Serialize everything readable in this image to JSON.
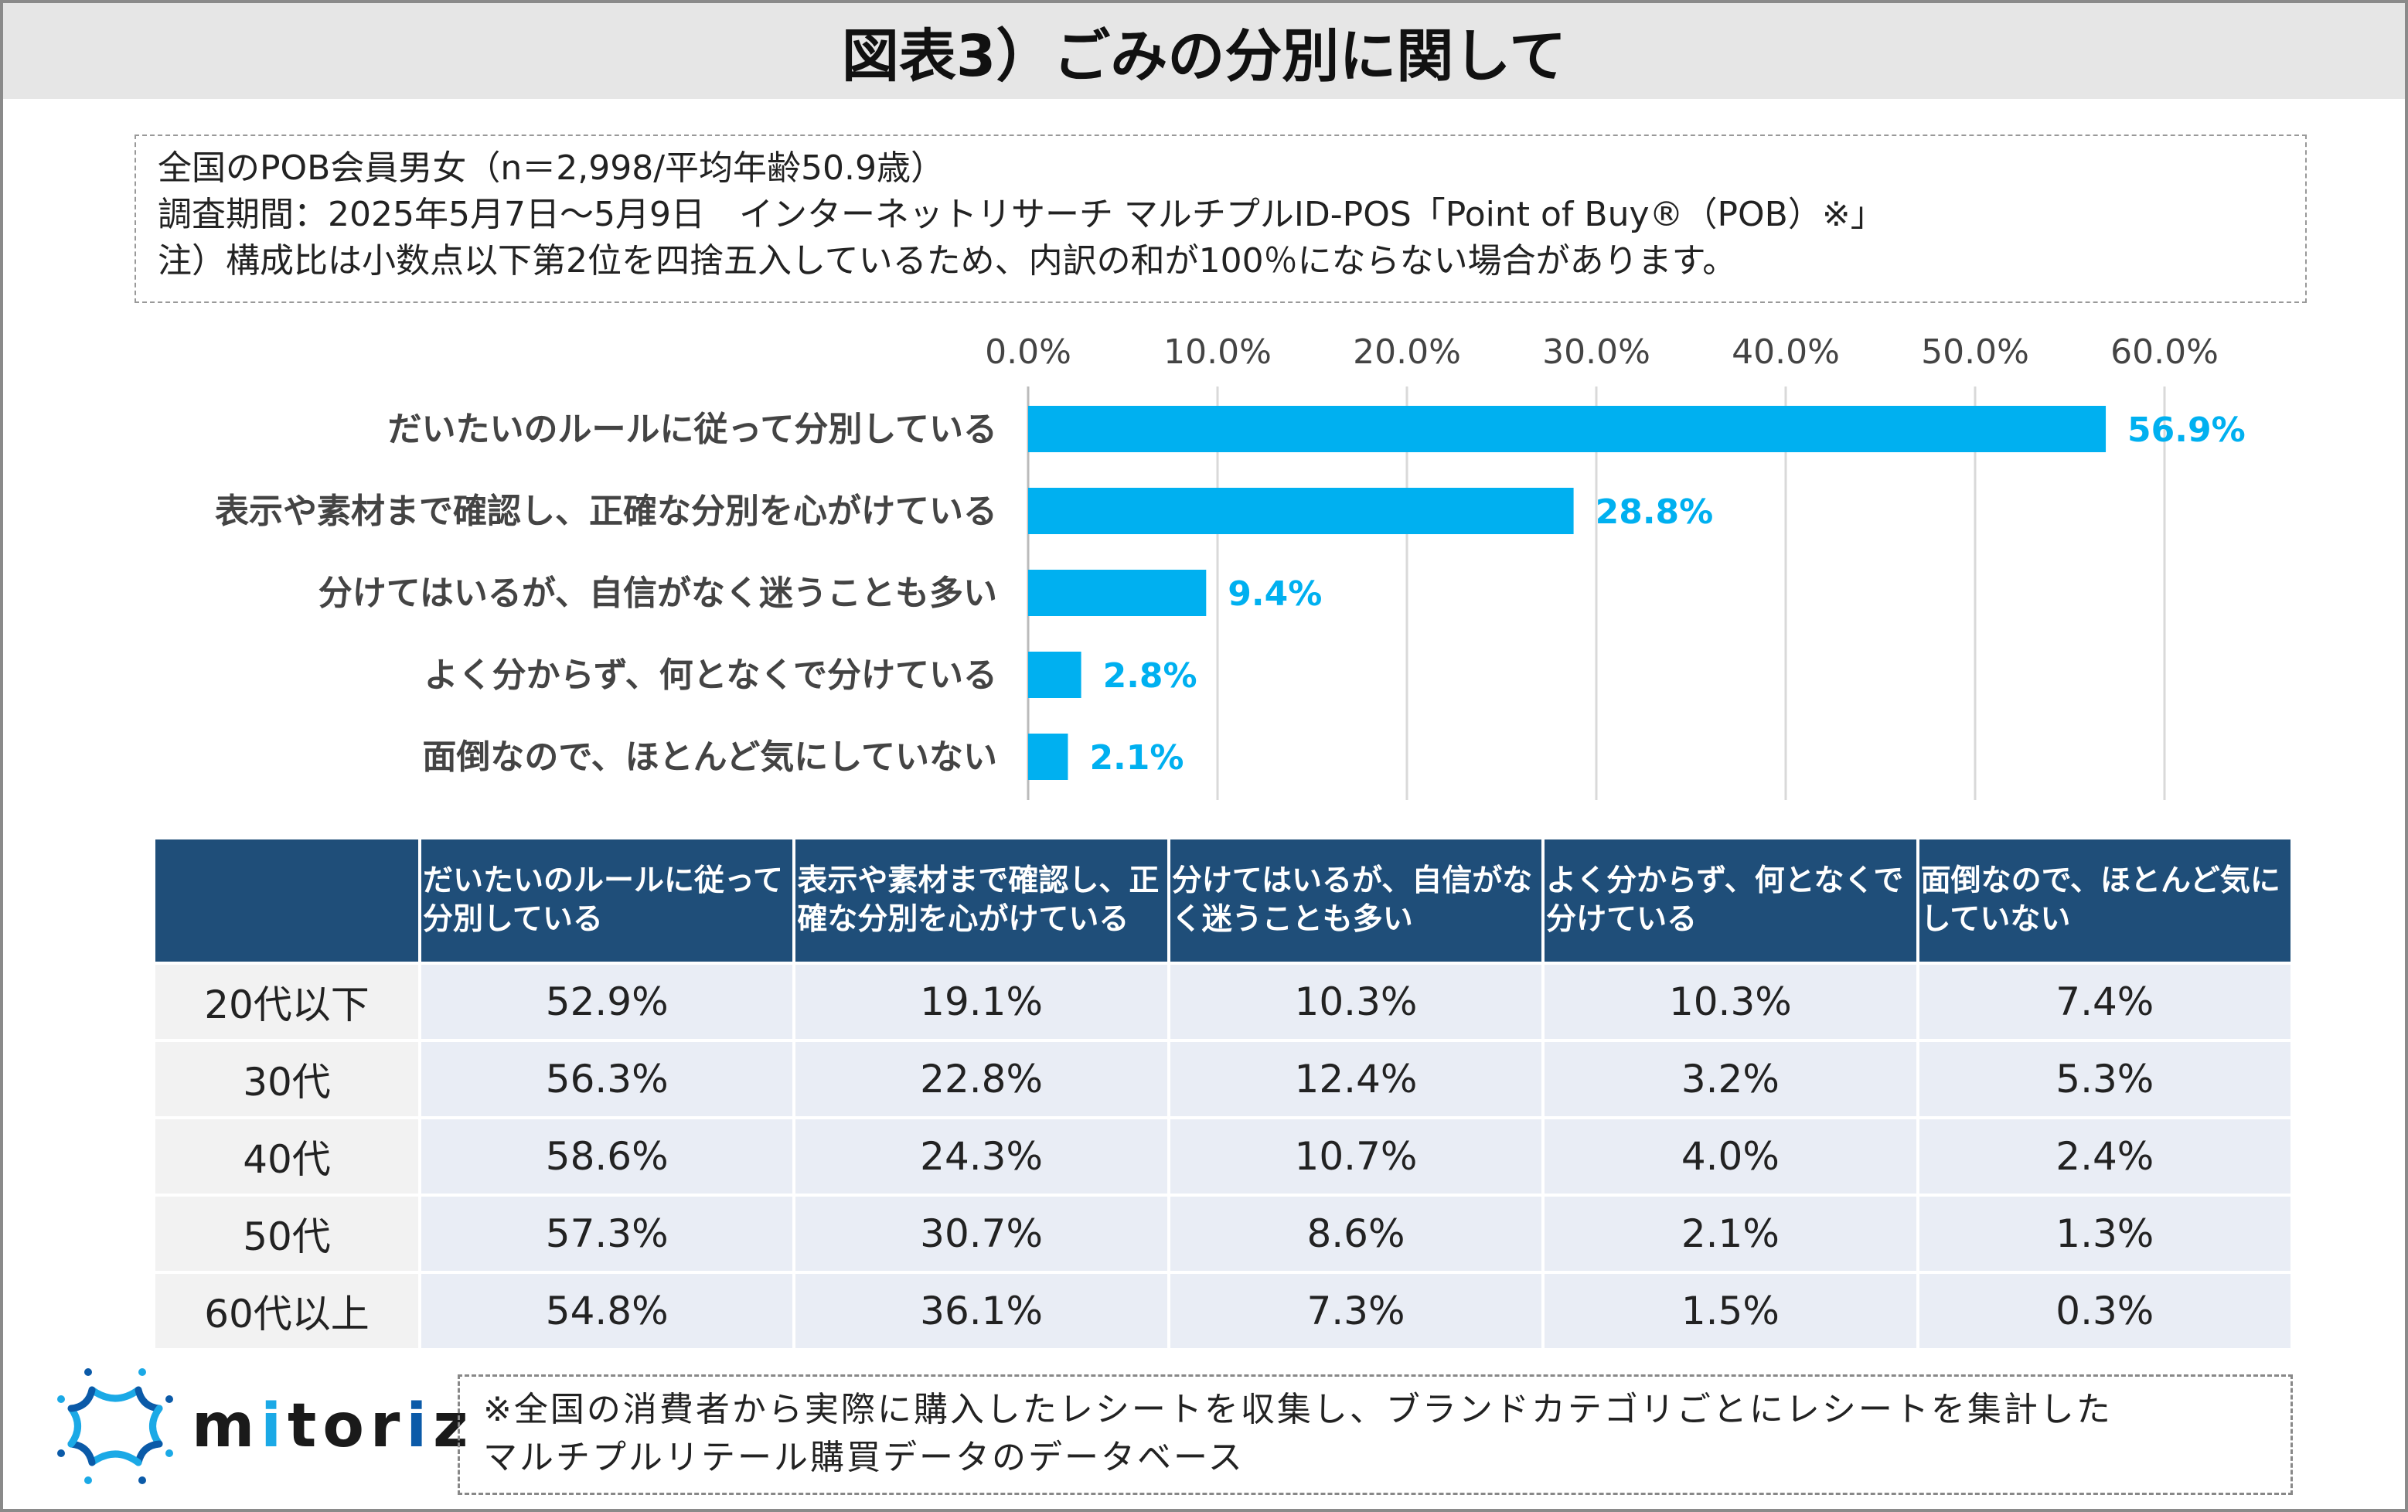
{
  "title": "図表3）ごみの分別に関して",
  "info": {
    "line1": "全国のPOB会員男女（n＝2,998/平均年齢50.9歳）",
    "line2": "調査期間：2025年5月7日～5月9日　インターネットリサーチ マルチプルID-POS「Point of Buy®（POB）※」",
    "line3": "注）構成比は小数点以下第2位を四捨五入しているため、内訳の和が100％にならない場合があります。"
  },
  "colors": {
    "bar": "#00b0f0",
    "label": "#00b0f0",
    "table_header": "#1f4e79"
  },
  "chart_data": {
    "type": "bar",
    "orientation": "horizontal",
    "categories": [
      "だいたいのルールに従って分別している",
      "表示や素材まで確認し、正確な分別を心がけている",
      "分けてはいるが、自信がなく迷うことも多い",
      "よく分からず、何となくで分けている",
      "面倒なので、ほとんど気にしていない"
    ],
    "values": [
      56.9,
      28.8,
      9.4,
      2.8,
      2.1
    ],
    "data_labels": [
      "56.9%",
      "28.8%",
      "9.4%",
      "2.8%",
      "2.1%"
    ],
    "xlim": [
      0,
      60
    ],
    "ticks": [
      0,
      10,
      20,
      30,
      40,
      50,
      60
    ],
    "tick_labels": [
      "0.0%",
      "10.0%",
      "20.0%",
      "30.0%",
      "40.0%",
      "50.0%",
      "60.0%"
    ],
    "grid": true
  },
  "table": {
    "headers": [
      "",
      "だいたいのルールに従って分別している",
      "表示や素材まで確認し、正確な分別を心がけている",
      "分けてはいるが、自信がなく迷うことも多い",
      "よく分からず、何となくで分けている",
      "面倒なので、ほとんど気にしていない"
    ],
    "rows": [
      [
        "20代以下",
        "52.9%",
        "19.1%",
        "10.3%",
        "10.3%",
        "7.4%"
      ],
      [
        "30代",
        "56.3%",
        "22.8%",
        "12.4%",
        "3.2%",
        "5.3%"
      ],
      [
        "40代",
        "58.6%",
        "24.3%",
        "10.7%",
        "4.0%",
        "2.4%"
      ],
      [
        "50代",
        "57.3%",
        "30.7%",
        "8.6%",
        "2.1%",
        "1.3%"
      ],
      [
        "60代以上",
        "54.8%",
        "36.1%",
        "7.3%",
        "1.5%",
        "0.3%"
      ]
    ]
  },
  "logo": {
    "text": "mitoriz"
  },
  "footnote": {
    "line1": "※全国の消費者から実際に購入したレシートを収集し、ブランドカテゴリごとにレシートを集計した",
    "line2": "マルチプルリテール購買データのデータベース"
  }
}
